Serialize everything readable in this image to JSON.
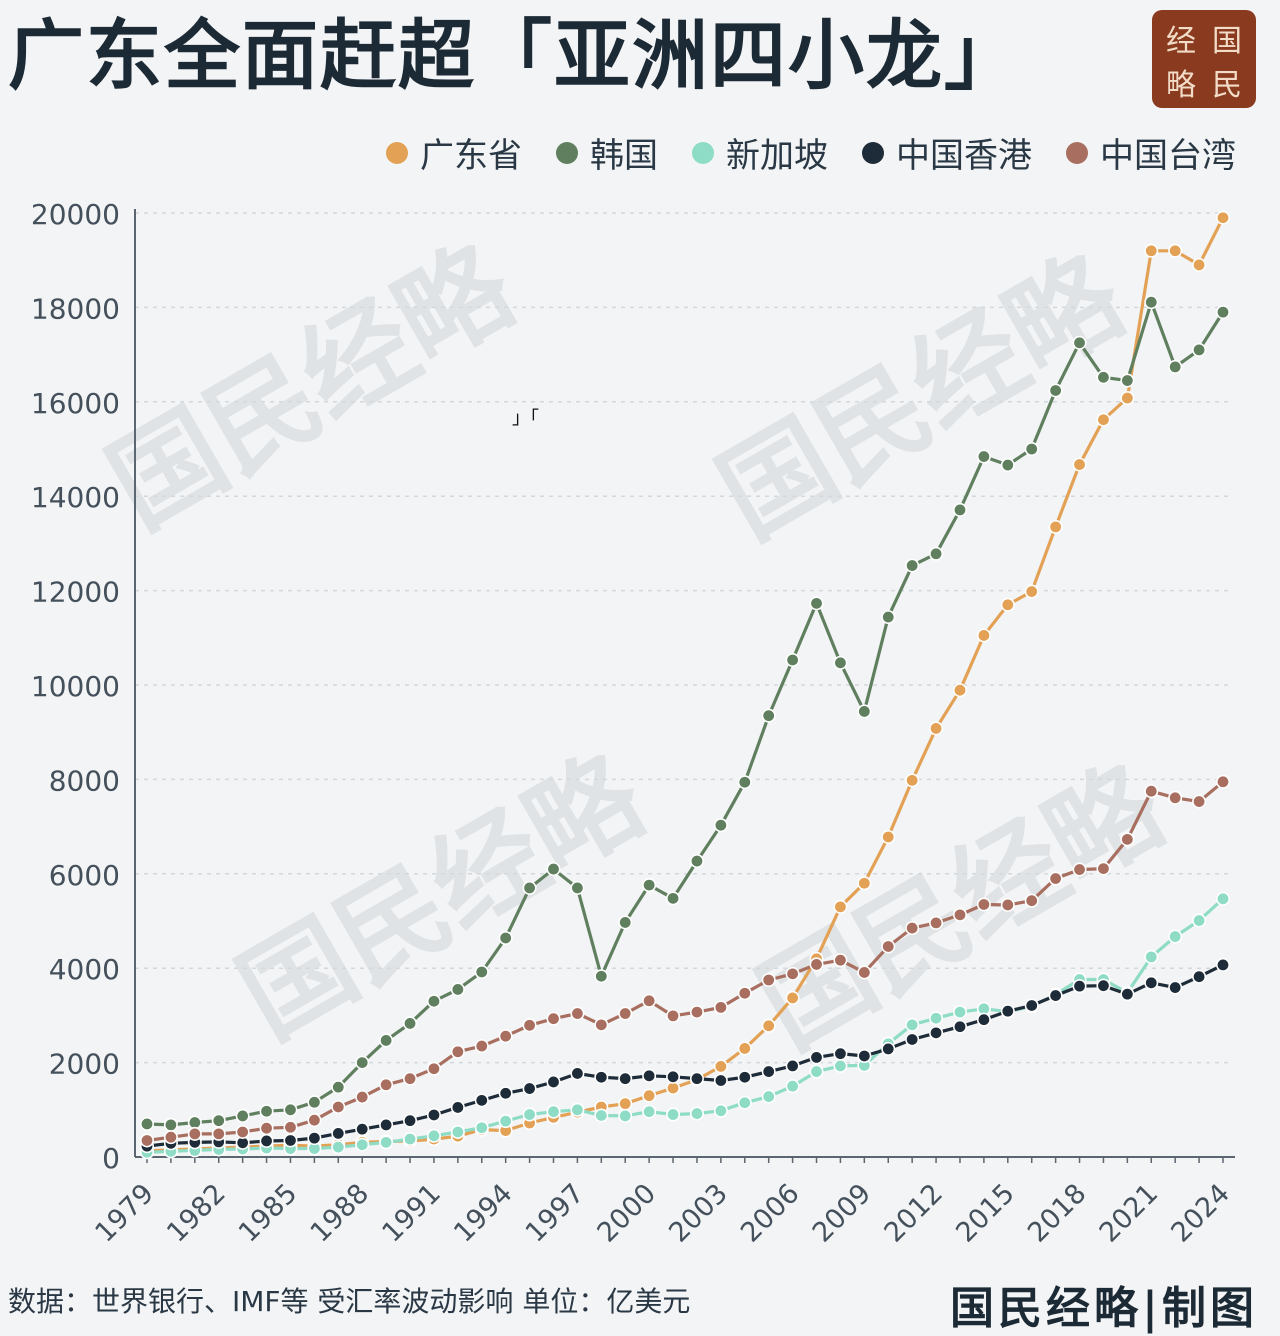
{
  "title": "广东全面赶超「亚洲四小龙」",
  "stray_mark": "」「",
  "logo": {
    "chars": [
      "经",
      "国",
      "略",
      "民"
    ],
    "color": "#8a3a1e"
  },
  "watermark": "国民经略",
  "footer": {
    "note": "数据：世界银行、IMF等 受汇率波动影响 单位：亿美元",
    "brand": "国民经略|制图"
  },
  "chart_data": {
    "type": "line",
    "title": "广东全面赶超「亚洲四小龙」",
    "xlabel": "",
    "ylabel": "",
    "ylim": [
      0,
      20000
    ],
    "yticks": [
      0,
      2000,
      4000,
      6000,
      8000,
      10000,
      12000,
      14000,
      16000,
      18000,
      20000
    ],
    "xticks": [
      1979,
      1982,
      1985,
      1988,
      1991,
      1994,
      1997,
      2000,
      2003,
      2006,
      2009,
      2012,
      2015,
      2018,
      2021,
      2024
    ],
    "legend_position": "top-right",
    "grid": true,
    "x": [
      1979,
      1980,
      1981,
      1982,
      1983,
      1984,
      1985,
      1986,
      1987,
      1988,
      1989,
      1990,
      1991,
      1992,
      1993,
      1994,
      1995,
      1996,
      1997,
      1998,
      1999,
      2000,
      2001,
      2002,
      2003,
      2004,
      2005,
      2006,
      2007,
      2008,
      2009,
      2010,
      2011,
      2012,
      2013,
      2014,
      2015,
      2016,
      2017,
      2018,
      2019,
      2020,
      2021,
      2022,
      2023,
      2024
    ],
    "series": [
      {
        "name": "广东省",
        "color": "#e3a155",
        "values": [
          130,
          150,
          170,
          190,
          210,
          230,
          250,
          230,
          260,
          310,
          330,
          340,
          380,
          440,
          580,
          560,
          720,
          840,
          950,
          1060,
          1130,
          1300,
          1460,
          1640,
          1920,
          2300,
          2780,
          3370,
          4200,
          5300,
          5800,
          6780,
          7980,
          9080,
          9890,
          11050,
          11700,
          11980,
          13350,
          14670,
          15620,
          16080,
          19200,
          19200,
          18900,
          19900
        ]
      },
      {
        "name": "韩国",
        "color": "#5f7f5f",
        "values": [
          700,
          680,
          730,
          770,
          870,
          970,
          1000,
          1160,
          1480,
          2000,
          2470,
          2830,
          3300,
          3550,
          3920,
          4640,
          5700,
          6100,
          5700,
          3830,
          4970,
          5760,
          5480,
          6270,
          7030,
          7940,
          9350,
          10530,
          11730,
          10470,
          9440,
          11440,
          12530,
          12780,
          13710,
          14840,
          14660,
          15000,
          16240,
          17250,
          16520,
          16450,
          18110,
          16740,
          17100,
          17900
        ]
      },
      {
        "name": "新加坡",
        "color": "#8fdcc6",
        "values": [
          100,
          120,
          140,
          160,
          170,
          190,
          180,
          180,
          210,
          260,
          310,
          380,
          450,
          530,
          620,
          760,
          900,
          960,
          1000,
          880,
          870,
          960,
          900,
          920,
          980,
          1150,
          1280,
          1500,
          1810,
          1930,
          1940,
          2400,
          2800,
          2940,
          3070,
          3140,
          3080,
          3190,
          3440,
          3760,
          3760,
          3480,
          4240,
          4670,
          5010,
          5470
        ]
      },
      {
        "name": "中国香港",
        "color": "#1e2b38",
        "values": [
          230,
          290,
          310,
          320,
          300,
          340,
          350,
          400,
          500,
          590,
          680,
          770,
          890,
          1050,
          1200,
          1350,
          1450,
          1590,
          1770,
          1690,
          1660,
          1720,
          1700,
          1660,
          1620,
          1690,
          1810,
          1930,
          2110,
          2190,
          2140,
          2290,
          2490,
          2630,
          2760,
          2910,
          3090,
          3210,
          3420,
          3620,
          3630,
          3450,
          3690,
          3590,
          3820,
          4070
        ]
      },
      {
        "name": "中国台湾",
        "color": "#a86e5f",
        "values": [
          350,
          420,
          490,
          490,
          530,
          610,
          630,
          780,
          1060,
          1270,
          1530,
          1660,
          1870,
          2230,
          2350,
          2560,
          2790,
          2930,
          3040,
          2800,
          3040,
          3310,
          2990,
          3070,
          3170,
          3470,
          3750,
          3880,
          4080,
          4170,
          3910,
          4460,
          4850,
          4960,
          5130,
          5350,
          5340,
          5430,
          5900,
          6090,
          6110,
          6730,
          7750,
          7610,
          7530,
          7950
        ]
      }
    ]
  }
}
